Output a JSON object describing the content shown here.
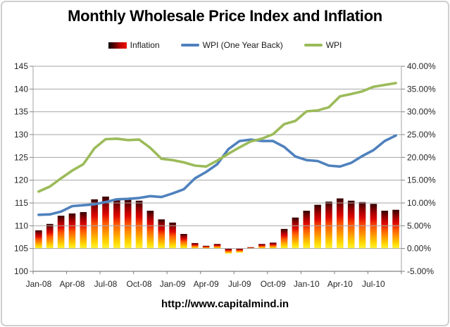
{
  "title": "Monthly Wholesale Price Index and Inflation",
  "footer": "http://www.capitalmind.in",
  "colors": {
    "blue_line": "#4f81bd",
    "green_line": "#9bbb59",
    "gridline": "#a6a6a6",
    "axis": "#808080",
    "tick_text": "#262626",
    "bar_gradient": [
      [
        "0%",
        "#330000"
      ],
      [
        "8%",
        "#620000"
      ],
      [
        "20%",
        "#a40000"
      ],
      [
        "34%",
        "#dd0700"
      ],
      [
        "52%",
        "#ff5a00"
      ],
      [
        "72%",
        "#ffa000"
      ],
      [
        "88%",
        "#ffd900"
      ],
      [
        "100%",
        "#fff63c"
      ]
    ],
    "legend_bar_gradient": [
      "#0d0000",
      "#5c0000",
      "#c40000",
      "#e81600"
    ]
  },
  "chart_data": {
    "type": "combo (bar + 2 lines)",
    "categories": [
      "Jan-08",
      "Feb-08",
      "Mar-08",
      "Apr-08",
      "May-08",
      "Jun-08",
      "Jul-08",
      "Aug-08",
      "Sep-08",
      "Oct-08",
      "Nov-08",
      "Dec-08",
      "Jan-09",
      "Feb-09",
      "Mar-09",
      "Apr-09",
      "May-09",
      "Jun-09",
      "Jul-09",
      "Aug-09",
      "Sep-09",
      "Oct-09",
      "Nov-09",
      "Dec-09",
      "Jan-10",
      "Feb-10",
      "Mar-10",
      "Apr-10",
      "May-10",
      "Jun-10",
      "Jul-10",
      "Aug-10",
      "Sep-10"
    ],
    "x_tick_labels": [
      "Jan-08",
      "Apr-08",
      "Jul-08",
      "Oct-08",
      "Jan-09",
      "Apr-09",
      "Jul-09",
      "Oct-09",
      "Jan-10",
      "Apr-10",
      "Jul-10"
    ],
    "series": [
      {
        "name": "Inflation",
        "type": "bar",
        "axis": "right",
        "unit": "%",
        "values": [
          4.0,
          5.4,
          7.2,
          7.7,
          8.0,
          10.8,
          11.4,
          10.9,
          10.8,
          10.5,
          8.3,
          6.4,
          5.7,
          3.2,
          1.2,
          0.6,
          1.0,
          -1.1,
          -0.9,
          0.3,
          1.0,
          1.3,
          4.3,
          6.8,
          8.3,
          9.6,
          10.3,
          11.0,
          10.5,
          10.2,
          9.8,
          8.3,
          8.5
        ]
      },
      {
        "name": "WPI (One Year Back)",
        "type": "line",
        "axis": "left",
        "color": "#4f81bd",
        "values": [
          112.4,
          112.5,
          113.1,
          114.3,
          114.5,
          114.7,
          115.2,
          115.8,
          115.9,
          116.1,
          116.5,
          116.3,
          117.1,
          118.0,
          120.4,
          121.8,
          123.5,
          126.8,
          128.6,
          128.9,
          128.6,
          128.6,
          127.3,
          125.2,
          124.4,
          124.2,
          123.2,
          123.0,
          123.8,
          125.3,
          126.6,
          128.6,
          129.8
        ]
      },
      {
        "name": "WPI",
        "type": "line",
        "axis": "left",
        "color": "#9bbb59",
        "values": [
          117.5,
          118.6,
          120.4,
          122.1,
          123.5,
          127.0,
          129.0,
          129.1,
          128.8,
          128.9,
          127.1,
          124.7,
          124.4,
          123.9,
          123.2,
          123.0,
          124.3,
          125.8,
          127.2,
          128.5,
          129.1,
          130.1,
          132.3,
          133.0,
          135.1,
          135.3,
          136.0,
          138.4,
          138.9,
          139.5,
          140.5,
          140.9,
          141.3
        ]
      }
    ],
    "left_axis": {
      "min": 100,
      "max": 145,
      "ticks": [
        100,
        105,
        110,
        115,
        120,
        125,
        130,
        135,
        140,
        145
      ]
    },
    "right_axis": {
      "min": -5,
      "max": 40,
      "step": 5,
      "tick_labels": [
        "-5.00%",
        "0.00%",
        "5.00%",
        "10.00%",
        "15.00%",
        "20.00%",
        "25.00%",
        "30.00%",
        "35.00%",
        "40.00%"
      ]
    },
    "legend_position": "top",
    "grid": true
  }
}
